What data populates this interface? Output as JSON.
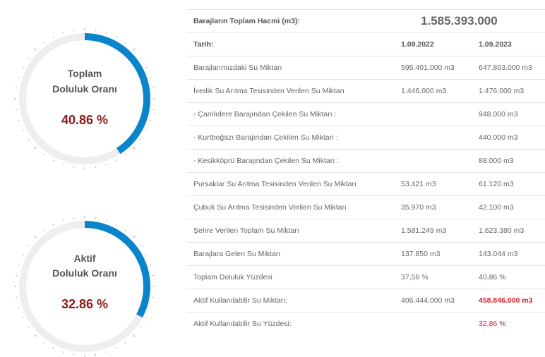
{
  "gauges": [
    {
      "label_line1": "Toplam",
      "label_line2": "Doluluk Oranı",
      "value_text": "40.86 %",
      "fraction": 0.4086,
      "color": "#0a85cc",
      "track": "#eeeeee"
    },
    {
      "label_line1": "Aktif",
      "label_line2": "Doluluk Oranı",
      "value_text": "32.86 %",
      "fraction": 0.3286,
      "color": "#0a85cc",
      "track": "#eeeeee"
    }
  ],
  "table": {
    "total_label": "Barajların Toplam Hacmi (m3):",
    "total_value": "1.585.393.000",
    "date_label": "Tarih:",
    "date1": "1.09.2022",
    "date2": "1.09.2023",
    "rows": [
      {
        "label": "Barajlarımızdaki Su Miktarı",
        "v1": "595.401.000 m3",
        "v2": "647.803.000 m3"
      },
      {
        "label": "İvedik Su Arıtma Tesisinden Verilen Su Miktarı",
        "v1": "1.446.000 m3",
        "v2": "1.476.000 m3"
      },
      {
        "label": "- Çamlıdere Barajından Çekilen Su Miktarı :",
        "v1": "",
        "v2": "948.000 m3"
      },
      {
        "label": "- Kurtboğazı Barajından Çekilen Su Miktarı :",
        "v1": "",
        "v2": "440.000 m3"
      },
      {
        "label": "- Kesikköprü Barajından Çekilen Su Miktarı :",
        "v1": "",
        "v2": "88.000 m3"
      },
      {
        "label": "Pursaklar Su Arıtma Tesisinden Verilen Su Miktarı",
        "v1": "53.421 m3",
        "v2": "61.120 m3"
      },
      {
        "label": "Çubuk Su Arıtma Tesisinden Verilen Su Miktarı",
        "v1": "35.970 m3",
        "v2": "42.100 m3"
      },
      {
        "label": "Şehre Verilen Toplam Su Miktarı",
        "v1": "1.581.249 m3",
        "v2": "1.623.380 m3"
      },
      {
        "label": "Barajlara Gelen Su Miktarı",
        "v1": "137.850 m3",
        "v2": "143.044 m3"
      },
      {
        "label": "Toplam Doluluk Yüzdesi",
        "v1": "37,56 %",
        "v2": "40,86 %"
      },
      {
        "label": "Aktif Kullanılabilir Su Miktarı:",
        "v1": "406.444.000 m3",
        "v2": "458.846.000 m3",
        "v2_style": "redb"
      },
      {
        "label": "Aktif Kullanılabilir Su Yüzdesi:",
        "v1": "",
        "v2": "32,86 %",
        "v2_style": "red"
      }
    ]
  }
}
